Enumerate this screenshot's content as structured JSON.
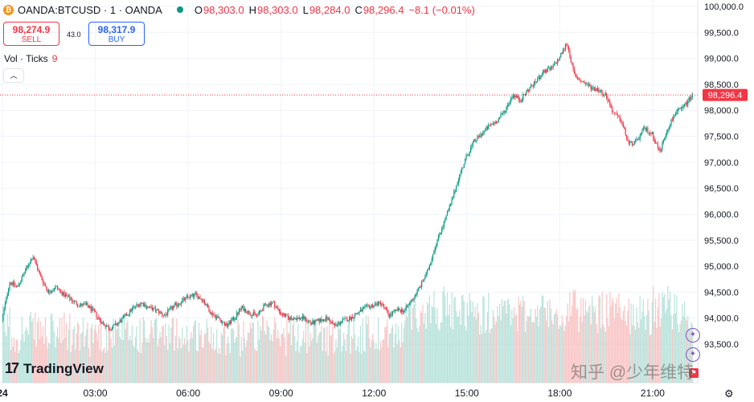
{
  "header": {
    "symbol": "OANDA:BTCUSD · 1 · OANDA",
    "open_label": "O",
    "open": "98,303.0",
    "high_label": "H",
    "high": "98,303.0",
    "low_label": "L",
    "low": "98,284.0",
    "close_label": "C",
    "close": "98,296.4",
    "change": "−8.1 (−0.01%)"
  },
  "trade": {
    "sell_price": "98,274.9",
    "sell_label": "SELL",
    "spread": "43.0",
    "buy_price": "98,317.9",
    "buy_label": "BUY"
  },
  "volume": {
    "label": "Vol · Ticks",
    "value": "9"
  },
  "branding": {
    "logo": "TradingView",
    "watermark": "知乎 @少年维特"
  },
  "colors": {
    "up": "#089981",
    "down": "#f23645",
    "vol_up": "#a8dcd3",
    "vol_down": "#f7b7b7",
    "last_price_line": "#f23645"
  },
  "chart_data": {
    "type": "candlestick",
    "interval": "1 minute",
    "x_ticks": [
      "24",
      "03:00",
      "06:00",
      "09:00",
      "12:00",
      "15:00",
      "18:00",
      "21:00"
    ],
    "x_range_hours": [
      0,
      22.3
    ],
    "y_ticks": [
      "100,000.0",
      "99,500.0",
      "99,000.0",
      "98,500.0",
      "98,000.0",
      "97,500.0",
      "97,000.0",
      "96,500.0",
      "96,000.0",
      "95,500.0",
      "95,000.0",
      "94,500.0",
      "94,000.0",
      "93,500.0"
    ],
    "ylim": [
      93200,
      100100
    ],
    "last_price": 98296.4,
    "last_price_label": "98,296.4",
    "price_path": [
      [
        0.0,
        93950
      ],
      [
        0.25,
        94700
      ],
      [
        0.5,
        94600
      ],
      [
        0.75,
        94900
      ],
      [
        1.0,
        95200
      ],
      [
        1.25,
        94800
      ],
      [
        1.5,
        94500
      ],
      [
        1.75,
        94600
      ],
      [
        2.0,
        94450
      ],
      [
        2.25,
        94350
      ],
      [
        2.5,
        94250
      ],
      [
        2.75,
        94250
      ],
      [
        3.0,
        94100
      ],
      [
        3.25,
        93900
      ],
      [
        3.5,
        93800
      ],
      [
        3.75,
        93900
      ],
      [
        4.0,
        94050
      ],
      [
        4.25,
        94200
      ],
      [
        4.5,
        94300
      ],
      [
        4.75,
        94200
      ],
      [
        5.0,
        94150
      ],
      [
        5.25,
        94050
      ],
      [
        5.5,
        94200
      ],
      [
        5.75,
        94300
      ],
      [
        6.0,
        94400
      ],
      [
        6.25,
        94450
      ],
      [
        6.5,
        94350
      ],
      [
        6.75,
        94100
      ],
      [
        7.0,
        94000
      ],
      [
        7.25,
        93850
      ],
      [
        7.5,
        94000
      ],
      [
        7.75,
        94200
      ],
      [
        8.0,
        94100
      ],
      [
        8.25,
        94050
      ],
      [
        8.5,
        94250
      ],
      [
        8.75,
        94300
      ],
      [
        9.0,
        94100
      ],
      [
        9.25,
        94000
      ],
      [
        9.5,
        94000
      ],
      [
        9.75,
        94000
      ],
      [
        10.0,
        93900
      ],
      [
        10.25,
        93950
      ],
      [
        10.5,
        94000
      ],
      [
        10.75,
        93850
      ],
      [
        11.0,
        93950
      ],
      [
        11.25,
        94000
      ],
      [
        11.5,
        94100
      ],
      [
        11.75,
        94200
      ],
      [
        12.0,
        94250
      ],
      [
        12.25,
        94300
      ],
      [
        12.5,
        94050
      ],
      [
        12.75,
        94150
      ],
      [
        13.0,
        94150
      ],
      [
        13.25,
        94350
      ],
      [
        13.5,
        94600
      ],
      [
        13.75,
        94900
      ],
      [
        14.0,
        95400
      ],
      [
        14.25,
        95800
      ],
      [
        14.5,
        96200
      ],
      [
        14.75,
        96700
      ],
      [
        15.0,
        97100
      ],
      [
        15.25,
        97400
      ],
      [
        15.5,
        97550
      ],
      [
        15.75,
        97700
      ],
      [
        16.0,
        97800
      ],
      [
        16.25,
        98000
      ],
      [
        16.5,
        98300
      ],
      [
        16.75,
        98200
      ],
      [
        17.0,
        98400
      ],
      [
        17.25,
        98550
      ],
      [
        17.5,
        98750
      ],
      [
        17.75,
        98800
      ],
      [
        18.0,
        99000
      ],
      [
        18.25,
        99300
      ],
      [
        18.5,
        98650
      ],
      [
        18.75,
        98550
      ],
      [
        19.0,
        98450
      ],
      [
        19.25,
        98400
      ],
      [
        19.5,
        98300
      ],
      [
        19.75,
        97950
      ],
      [
        20.0,
        97800
      ],
      [
        20.25,
        97350
      ],
      [
        20.5,
        97400
      ],
      [
        20.75,
        97650
      ],
      [
        21.0,
        97550
      ],
      [
        21.25,
        97200
      ],
      [
        21.5,
        97650
      ],
      [
        21.75,
        97950
      ],
      [
        22.0,
        98050
      ],
      [
        22.3,
        98296
      ]
    ]
  }
}
